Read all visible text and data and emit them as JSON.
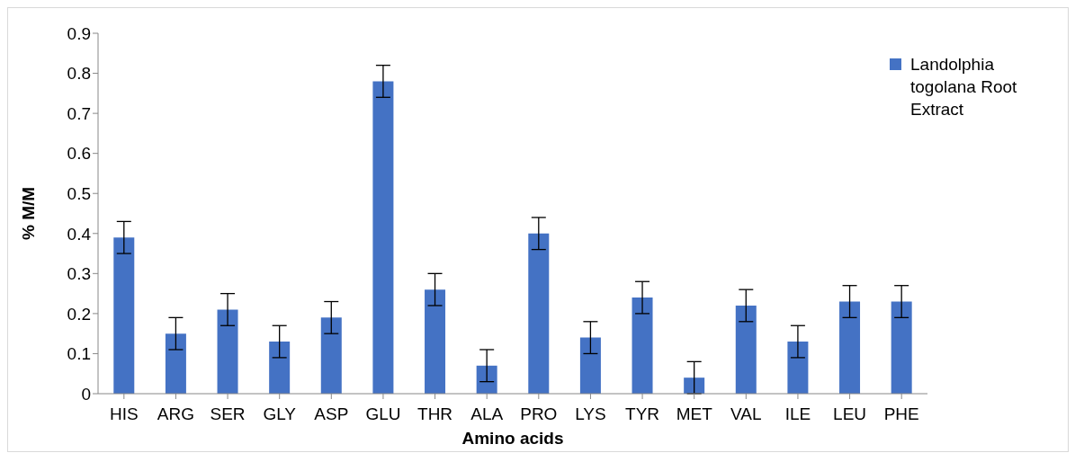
{
  "chart_data": {
    "type": "bar",
    "xlabel": "Amino acids",
    "ylabel": "% M/M",
    "categories": [
      "HIS",
      "ARG",
      "SER",
      "GLY",
      "ASP",
      "GLU",
      "THR",
      "ALA",
      "PRO",
      "LYS",
      "TYR",
      "MET",
      "VAL",
      "ILE",
      "LEU",
      "PHE"
    ],
    "series": [
      {
        "name": "Landolphia togolana Root Extract",
        "color": "#4472c4",
        "values": [
          0.39,
          0.15,
          0.21,
          0.13,
          0.19,
          0.78,
          0.26,
          0.07,
          0.4,
          0.14,
          0.24,
          0.04,
          0.22,
          0.13,
          0.23,
          0.23
        ],
        "errors": [
          0.04,
          0.04,
          0.04,
          0.04,
          0.04,
          0.04,
          0.04,
          0.04,
          0.04,
          0.04,
          0.04,
          0.04,
          0.04,
          0.04,
          0.04,
          0.04
        ]
      }
    ],
    "ylim": [
      0,
      0.9
    ],
    "yticks": [
      0,
      0.1,
      0.2,
      0.3,
      0.4,
      0.5,
      0.6,
      0.7,
      0.8,
      0.9
    ],
    "grid": false,
    "legend": "top right"
  }
}
